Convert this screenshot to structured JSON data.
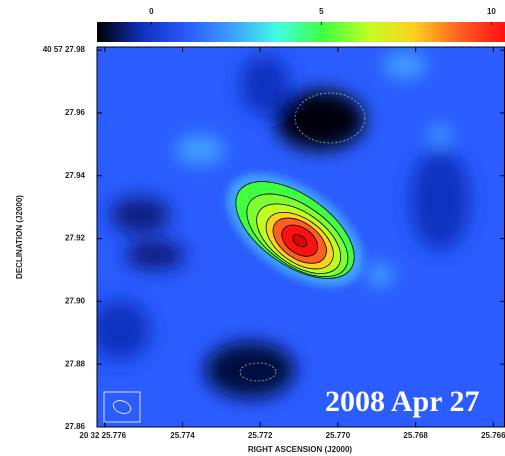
{
  "chart_data": {
    "type": "image",
    "xlabel": "RIGHT ASCENSION (J2000)",
    "ylabel": "DECLINATION (J2000)",
    "annotation": "2008 Apr 27",
    "xlim": [
      25.7762,
      25.7657
    ],
    "xticks": [
      {
        "value": 25.776,
        "label": "20 32 25.776"
      },
      25.774,
      25.772,
      {
        "value": 25.77,
        "label": "25.770"
      },
      25.768,
      25.766
    ],
    "ylim": [
      27.86,
      27.981
    ],
    "yticks": [
      27.86,
      27.88,
      {
        "value": 27.9,
        "label": "27.90"
      },
      27.92,
      27.94,
      27.96,
      {
        "value": 27.98,
        "label": "40 57 27.98"
      }
    ],
    "colorbar": {
      "lim": [
        -1.6,
        10.4
      ],
      "ticks": [
        0,
        5,
        10
      ],
      "colormap": [
        "#000000",
        "#1030c0",
        "#2a5cff",
        "#3fa0ff",
        "#40ffe0",
        "#40ff40",
        "#c0ff20",
        "#ffd020",
        "#ff6020",
        "#ff1010"
      ]
    }
  }
}
